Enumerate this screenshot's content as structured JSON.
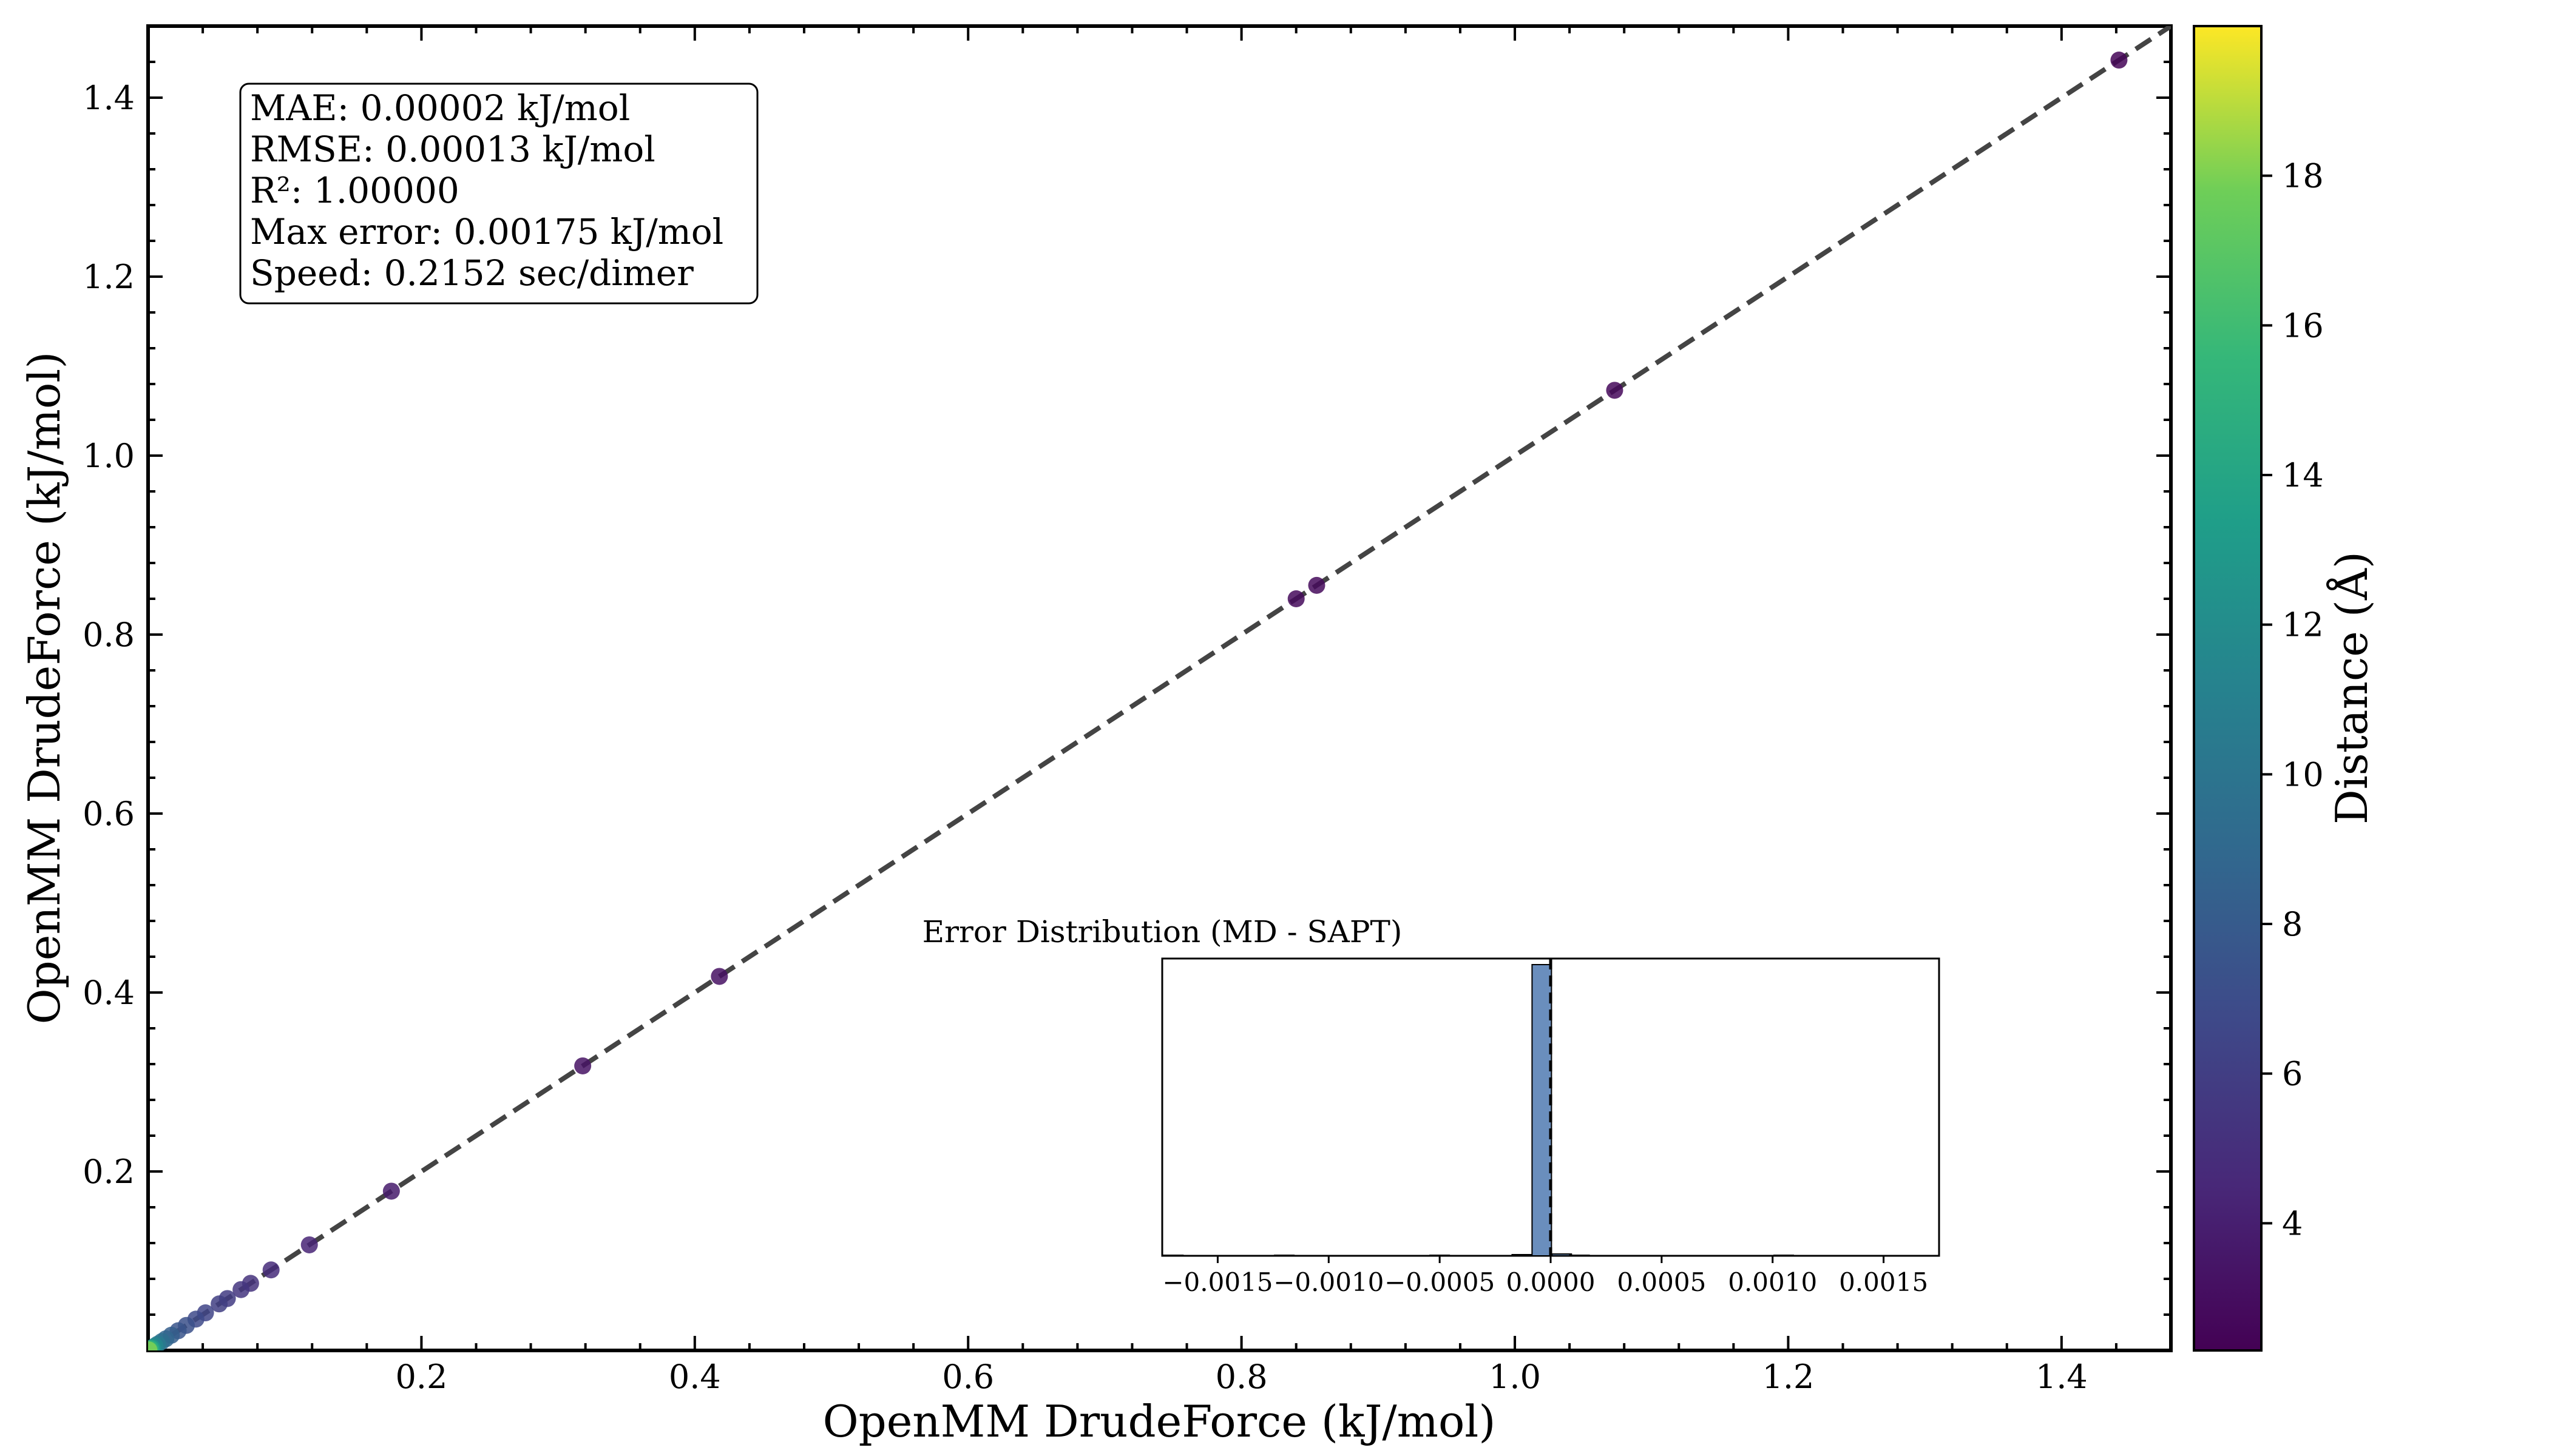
{
  "chart_data": [
    {
      "type": "scatter",
      "xlabel": "OpenMM DrudeForce (kJ/mol)",
      "ylabel": "OpenMM DrudeForce (kJ/mol)",
      "xlim": [
        0.0,
        1.48
      ],
      "ylim": [
        0.0,
        1.48
      ],
      "x_ticks": [
        "0.2",
        "0.4",
        "0.6",
        "0.8",
        "1.0",
        "1.2",
        "1.4"
      ],
      "y_ticks": [
        "0.2",
        "0.4",
        "0.6",
        "0.8",
        "1.0",
        "1.2",
        "1.4"
      ],
      "x_tick_values": [
        0.2,
        0.4,
        0.6,
        0.8,
        1.0,
        1.2,
        1.4
      ],
      "y_tick_values": [
        0.2,
        0.4,
        0.6,
        0.8,
        1.0,
        1.2,
        1.4
      ],
      "reference_line": "y = x (dashed)",
      "colormap": "viridis",
      "colorbar": {
        "label": "Distance (Å)",
        "range": [
          2.3,
          20.0
        ],
        "ticks": [
          "4",
          "6",
          "8",
          "10",
          "12",
          "14",
          "16",
          "18"
        ],
        "tick_values": [
          4,
          6,
          8,
          10,
          12,
          14,
          16,
          18
        ]
      },
      "stats_box": [
        "MAE: 0.00002 kJ/mol",
        "RMSE: 0.00013 kJ/mol",
        "R²: 1.00000",
        "Max error: 0.00175 kJ/mol",
        "Speed: 0.2152 sec/dimer"
      ],
      "points": [
        {
          "x": 1.442,
          "y": 1.442,
          "distance": 2.5
        },
        {
          "x": 1.073,
          "y": 1.073,
          "distance": 2.7
        },
        {
          "x": 0.855,
          "y": 0.855,
          "distance": 2.8
        },
        {
          "x": 0.84,
          "y": 0.84,
          "distance": 2.8
        },
        {
          "x": 0.418,
          "y": 0.418,
          "distance": 3.2
        },
        {
          "x": 0.318,
          "y": 0.318,
          "distance": 3.3
        },
        {
          "x": 0.178,
          "y": 0.178,
          "distance": 3.8
        },
        {
          "x": 0.118,
          "y": 0.118,
          "distance": 4.3
        },
        {
          "x": 0.09,
          "y": 0.09,
          "distance": 4.8
        },
        {
          "x": 0.075,
          "y": 0.075,
          "distance": 5.2
        },
        {
          "x": 0.068,
          "y": 0.068,
          "distance": 5.4
        },
        {
          "x": 0.058,
          "y": 0.058,
          "distance": 5.8
        },
        {
          "x": 0.052,
          "y": 0.052,
          "distance": 6.0
        },
        {
          "x": 0.042,
          "y": 0.042,
          "distance": 6.4
        },
        {
          "x": 0.035,
          "y": 0.035,
          "distance": 6.8
        },
        {
          "x": 0.028,
          "y": 0.028,
          "distance": 7.2
        },
        {
          "x": 0.022,
          "y": 0.022,
          "distance": 7.6
        },
        {
          "x": 0.017,
          "y": 0.017,
          "distance": 8.2
        },
        {
          "x": 0.013,
          "y": 0.013,
          "distance": 8.8
        },
        {
          "x": 0.01,
          "y": 0.01,
          "distance": 9.5
        },
        {
          "x": 0.007,
          "y": 0.007,
          "distance": 10.5
        },
        {
          "x": 0.005,
          "y": 0.005,
          "distance": 11.5
        },
        {
          "x": 0.003,
          "y": 0.003,
          "distance": 13.0
        },
        {
          "x": 0.002,
          "y": 0.002,
          "distance": 14.5
        },
        {
          "x": 0.001,
          "y": 0.001,
          "distance": 16.0
        },
        {
          "x": 0.0005,
          "y": 0.0005,
          "distance": 18.0
        }
      ]
    },
    {
      "type": "bar",
      "title": "Error Distribution (MD - SAPT)",
      "xlim": [
        -0.00175,
        0.00175
      ],
      "x_ticks": [
        "−0.0015",
        "−0.0010",
        "−0.0005",
        "0.0000",
        "0.0005",
        "0.0010",
        "0.0015"
      ],
      "x_tick_values": [
        -0.0015,
        -0.001,
        -0.0005,
        0.0,
        0.0005,
        0.001,
        0.0015
      ],
      "reference_line": "x = 0 (dashed)",
      "bin_width": 8.75e-05,
      "bins": [
        {
          "x": -0.0017,
          "count": 1
        },
        {
          "x": -0.0012,
          "count": 1
        },
        {
          "x": -0.0005,
          "count": 1
        },
        {
          "x": -0.00013,
          "count": 2
        },
        {
          "x": -4e-05,
          "count": 480
        },
        {
          "x": 5e-05,
          "count": 3
        },
        {
          "x": 0.00013,
          "count": 1
        },
        {
          "x": 0.00105,
          "count": 1
        }
      ]
    }
  ]
}
